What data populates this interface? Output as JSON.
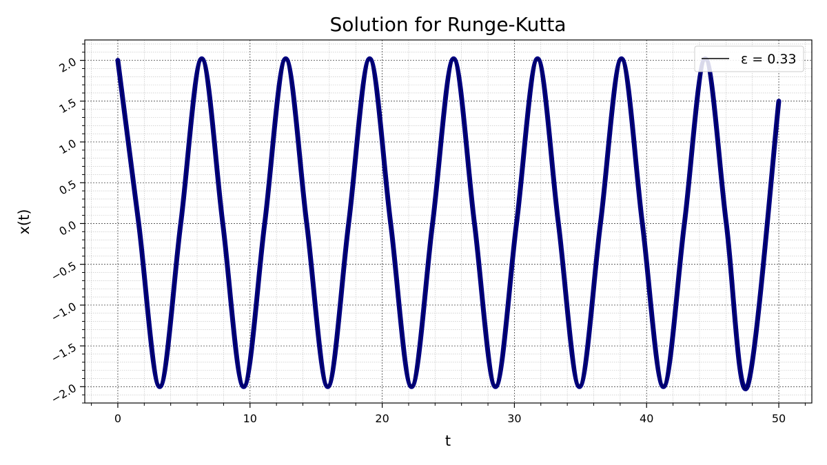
{
  "chart_data": {
    "type": "line",
    "title": "Solution for Runge-Kutta",
    "xlabel": "t",
    "ylabel": "x(t)",
    "xlim": [
      -2.5,
      52.5
    ],
    "ylim": [
      -2.2,
      2.25
    ],
    "xticks": [
      0,
      10,
      20,
      30,
      40,
      50
    ],
    "xtick_labels": [
      "0",
      "10",
      "20",
      "30",
      "40",
      "50"
    ],
    "yticks": [
      -2.0,
      -1.5,
      -1.0,
      -0.5,
      0.0,
      0.5,
      1.0,
      1.5,
      2.0
    ],
    "ytick_labels": [
      "−2.0",
      "−1.5",
      "−1.0",
      "−0.5",
      "0.0",
      "0.5",
      "1.0",
      "1.5",
      "2.0"
    ],
    "grid": true,
    "legend_position": "top-right",
    "series": [
      {
        "name": "ε = 0.33",
        "color": "#000080",
        "x": [
          0.0,
          1.58,
          3.17,
          4.76,
          6.35,
          7.94,
          9.52,
          11.11,
          12.7,
          14.29,
          15.88,
          17.46,
          19.05,
          20.64,
          22.22,
          23.81,
          25.4,
          26.98,
          28.57,
          30.16,
          31.75,
          33.33,
          34.92,
          36.51,
          38.1,
          39.68,
          41.27,
          42.86,
          44.44,
          46.03,
          47.62,
          50.0
        ],
        "y": [
          2.0,
          0.0,
          -2.0,
          0.0,
          2.02,
          0.0,
          -2.0,
          0.0,
          2.02,
          0.0,
          -2.0,
          0.0,
          2.02,
          0.0,
          -2.0,
          0.0,
          2.02,
          0.0,
          -2.0,
          0.0,
          2.02,
          0.0,
          -2.0,
          0.0,
          2.02,
          0.0,
          -2.0,
          0.0,
          2.02,
          0.0,
          -2.0,
          1.5
        ]
      }
    ]
  }
}
